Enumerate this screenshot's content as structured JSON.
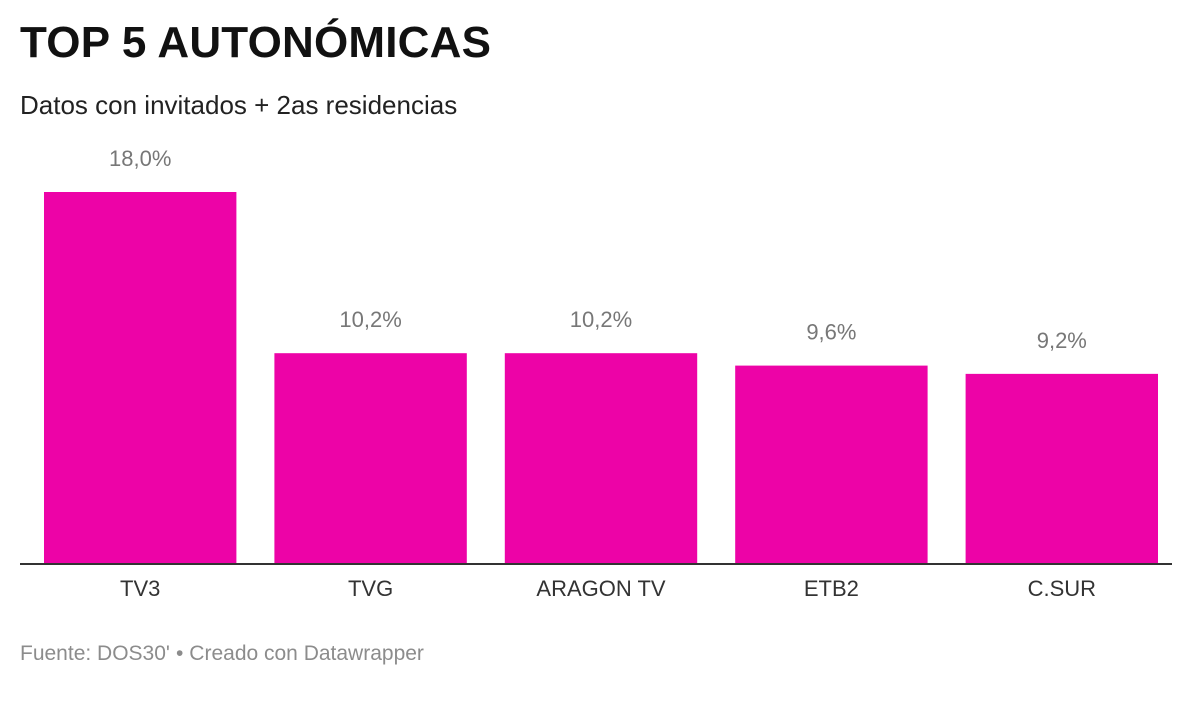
{
  "header": {
    "title": "TOP 5 AUTONÓMICAS",
    "subtitle": "Datos con invitados + 2as residencias"
  },
  "footer": {
    "source": "Fuente: DOS30'",
    "separator": "•",
    "credit": "Creado con Datawrapper"
  },
  "colors": {
    "bar": "#ed03a7",
    "value_label": "#777777",
    "category_label": "#333333",
    "baseline": "#333333"
  },
  "chart_data": {
    "type": "bar",
    "title": "TOP 5 AUTONÓMICAS",
    "subtitle": "Datos con invitados + 2as residencias",
    "categories": [
      "TV3",
      "TVG",
      "ARAGON TV",
      "ETB2",
      "C.SUR"
    ],
    "values": [
      18.0,
      10.2,
      10.2,
      9.6,
      9.2
    ],
    "value_labels": [
      "18,0%",
      "10,2%",
      "10,2%",
      "9,6%",
      "9,2%"
    ],
    "xlabel": "",
    "ylabel": "",
    "ylim": [
      0,
      18.0
    ],
    "grid": false,
    "legend": "none"
  }
}
